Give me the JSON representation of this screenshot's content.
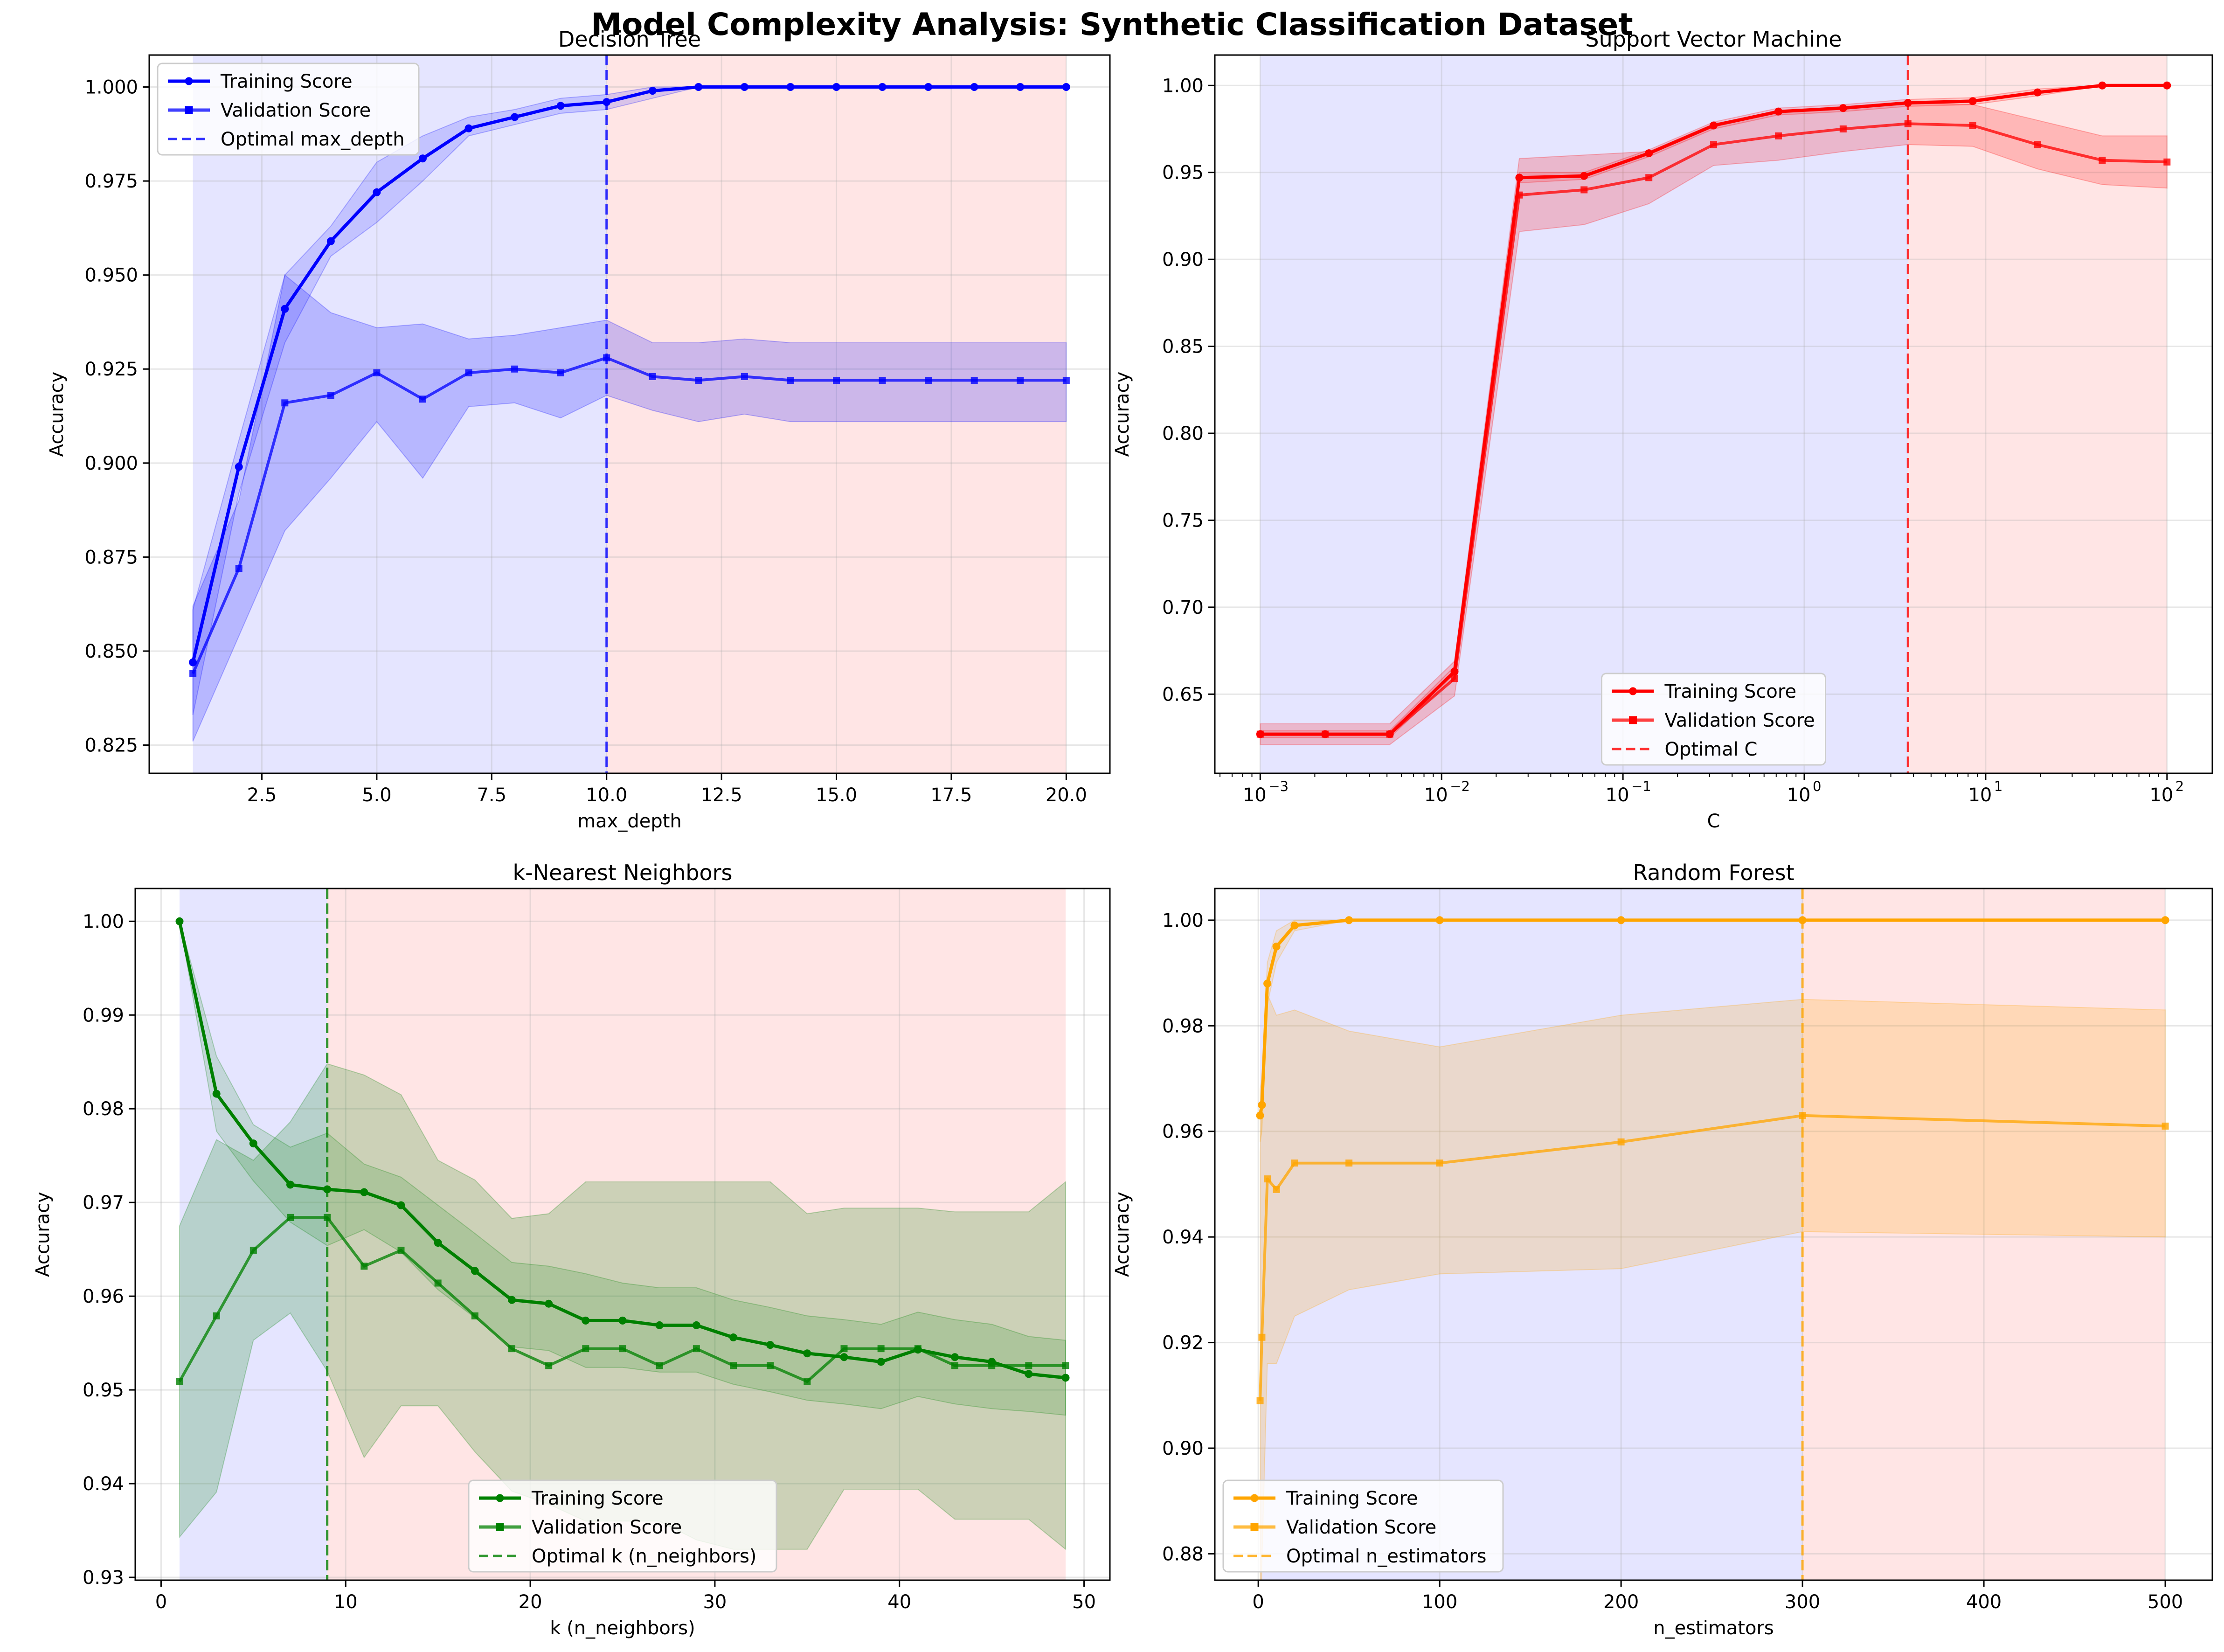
{
  "figure": {
    "title": "Model Complexity Analysis: Synthetic Classification Dataset"
  },
  "chart_data": [
    {
      "type": "line",
      "title": "Decision Tree",
      "xlabel": "max_depth",
      "ylabel": "Accuracy",
      "xscale": "linear",
      "xlim": [
        0.05,
        20.95
      ],
      "ylim": [
        0.8175,
        1.0085
      ],
      "xticks": [
        2.5,
        5.0,
        7.5,
        10.0,
        12.5,
        15.0,
        17.5,
        20.0
      ],
      "xtick_labels": [
        "2.5",
        "5.0",
        "7.5",
        "10.0",
        "12.5",
        "15.0",
        "17.5",
        "20.0"
      ],
      "yticks": [
        0.825,
        0.85,
        0.875,
        0.9,
        0.925,
        0.95,
        0.975,
        1.0
      ],
      "ytick_labels": [
        "0.825",
        "0.850",
        "0.875",
        "0.900",
        "0.925",
        "0.950",
        "0.975",
        "1.000"
      ],
      "color": "#0000ff",
      "legend": "upper-left",
      "grid": true,
      "optimal": {
        "value": 10,
        "label": "Optimal max_depth"
      },
      "region_start": 1,
      "region_end": 20,
      "x": [
        1,
        2,
        3,
        4,
        5,
        6,
        7,
        8,
        9,
        10,
        11,
        12,
        13,
        14,
        15,
        16,
        17,
        18,
        19,
        20
      ],
      "series": [
        {
          "name": "Training Score",
          "marker": "circle",
          "values": [
            0.847,
            0.899,
            0.941,
            0.959,
            0.972,
            0.981,
            0.989,
            0.992,
            0.995,
            0.996,
            0.999,
            1.0,
            1.0,
            1.0,
            1.0,
            1.0,
            1.0,
            1.0,
            1.0,
            1.0
          ],
          "lower": [
            0.833,
            0.892,
            0.932,
            0.955,
            0.964,
            0.975,
            0.987,
            0.99,
            0.993,
            0.994,
            0.997,
            1.0,
            1.0,
            1.0,
            1.0,
            1.0,
            1.0,
            1.0,
            1.0,
            1.0
          ],
          "upper": [
            0.861,
            0.906,
            0.95,
            0.963,
            0.98,
            0.987,
            0.992,
            0.994,
            0.997,
            0.998,
            1.0,
            1.0,
            1.0,
            1.0,
            1.0,
            1.0,
            1.0,
            1.0,
            1.0,
            1.0
          ]
        },
        {
          "name": "Validation Score",
          "marker": "square",
          "values": [
            0.844,
            0.872,
            0.916,
            0.918,
            0.924,
            0.917,
            0.924,
            0.925,
            0.924,
            0.928,
            0.923,
            0.922,
            0.923,
            0.922,
            0.922,
            0.922,
            0.922,
            0.922,
            0.922,
            0.922
          ],
          "lower": [
            0.826,
            0.854,
            0.882,
            0.896,
            0.911,
            0.896,
            0.915,
            0.916,
            0.912,
            0.918,
            0.914,
            0.911,
            0.913,
            0.911,
            0.911,
            0.911,
            0.911,
            0.911,
            0.911,
            0.911
          ],
          "upper": [
            0.862,
            0.89,
            0.95,
            0.94,
            0.936,
            0.937,
            0.933,
            0.934,
            0.936,
            0.938,
            0.932,
            0.932,
            0.933,
            0.932,
            0.932,
            0.932,
            0.932,
            0.932,
            0.932,
            0.932
          ]
        }
      ]
    },
    {
      "type": "line",
      "title": "Support Vector Machine",
      "xlabel": "C",
      "ylabel": "Accuracy",
      "xscale": "log",
      "xlim": [
        0.000562,
        177.8
      ],
      "ylim": [
        0.6045,
        1.0175
      ],
      "xticks": [
        0.001,
        0.01,
        0.1,
        1,
        10,
        100
      ],
      "xtick_labels": [
        "10",
        "10",
        "10",
        "10",
        "10",
        "10"
      ],
      "xtick_exponents": [
        "−3",
        "−2",
        "−1",
        "0",
        "1",
        "2"
      ],
      "yticks": [
        0.65,
        0.7,
        0.75,
        0.8,
        0.85,
        0.9,
        0.95,
        1.0
      ],
      "ytick_labels": [
        "0.65",
        "0.70",
        "0.75",
        "0.80",
        "0.85",
        "0.90",
        "0.95",
        "1.00"
      ],
      "color": "#ff0000",
      "legend": "lower-center",
      "grid": true,
      "optimal": {
        "value": 3.728,
        "label": "Optimal C"
      },
      "region_start": 0.001,
      "region_end": 100,
      "x": [
        0.001,
        0.00228,
        0.00518,
        0.01179,
        0.02683,
        0.06105,
        0.13895,
        0.31623,
        0.71969,
        1.6379,
        3.7276,
        8.4834,
        19.307,
        43.94,
        100
      ],
      "series": [
        {
          "name": "Training Score",
          "marker": "circle",
          "values": [
            0.627,
            0.627,
            0.627,
            0.663,
            0.947,
            0.948,
            0.961,
            0.977,
            0.985,
            0.987,
            0.99,
            0.991,
            0.996,
            1.0,
            1.0
          ],
          "lower": [
            0.625,
            0.625,
            0.625,
            0.66,
            0.944,
            0.946,
            0.959,
            0.975,
            0.983,
            0.985,
            0.988,
            0.989,
            0.994,
            1.0,
            1.0
          ],
          "upper": [
            0.629,
            0.629,
            0.629,
            0.666,
            0.95,
            0.95,
            0.963,
            0.979,
            0.987,
            0.989,
            0.992,
            0.993,
            0.998,
            1.0,
            1.0
          ]
        },
        {
          "name": "Validation Score",
          "marker": "square",
          "values": [
            0.627,
            0.627,
            0.627,
            0.659,
            0.937,
            0.94,
            0.947,
            0.966,
            0.971,
            0.975,
            0.978,
            0.977,
            0.966,
            0.957,
            0.956
          ],
          "lower": [
            0.621,
            0.621,
            0.621,
            0.649,
            0.916,
            0.92,
            0.932,
            0.954,
            0.957,
            0.962,
            0.966,
            0.965,
            0.952,
            0.943,
            0.941
          ],
          "upper": [
            0.633,
            0.633,
            0.633,
            0.669,
            0.958,
            0.96,
            0.962,
            0.978,
            0.985,
            0.988,
            0.99,
            0.989,
            0.98,
            0.971,
            0.971
          ]
        }
      ]
    },
    {
      "type": "line",
      "title": "k-Nearest Neighbors",
      "xlabel": "k (n_neighbors)",
      "ylabel": "Accuracy",
      "xscale": "linear",
      "xlim": [
        -1.4,
        51.4
      ],
      "ylim": [
        0.9297,
        1.0035
      ],
      "xticks": [
        0,
        10,
        20,
        30,
        40,
        50
      ],
      "xtick_labels": [
        "0",
        "10",
        "20",
        "30",
        "40",
        "50"
      ],
      "yticks": [
        0.93,
        0.94,
        0.95,
        0.96,
        0.97,
        0.98,
        0.99,
        1.0
      ],
      "ytick_labels": [
        "0.93",
        "0.94",
        "0.95",
        "0.96",
        "0.97",
        "0.98",
        "0.99",
        "1.00"
      ],
      "color": "#008000",
      "legend": "lower-center",
      "grid": true,
      "optimal": {
        "value": 9,
        "label": "Optimal k (n_neighbors)"
      },
      "region_start": 1,
      "region_end": 49,
      "x": [
        1,
        3,
        5,
        7,
        9,
        11,
        13,
        15,
        17,
        19,
        21,
        23,
        25,
        27,
        29,
        31,
        33,
        35,
        37,
        39,
        41,
        43,
        45,
        47,
        49
      ],
      "series": [
        {
          "name": "Training Score",
          "marker": "circle",
          "values": [
            1.0,
            0.9816,
            0.9763,
            0.9719,
            0.9714,
            0.9711,
            0.9697,
            0.9657,
            0.9627,
            0.9596,
            0.9592,
            0.9574,
            0.9574,
            0.9569,
            0.9569,
            0.9556,
            0.9548,
            0.9539,
            0.9535,
            0.953,
            0.9543,
            0.9535,
            0.953,
            0.9517,
            0.9513
          ],
          "lower": [
            1.0,
            0.9776,
            0.9723,
            0.9679,
            0.9654,
            0.9671,
            0.9647,
            0.9607,
            0.9577,
            0.9546,
            0.9542,
            0.9524,
            0.9524,
            0.9519,
            0.9519,
            0.9506,
            0.9498,
            0.9489,
            0.9485,
            0.948,
            0.9493,
            0.9485,
            0.948,
            0.9477,
            0.9473
          ],
          "upper": [
            1.0,
            0.9856,
            0.9783,
            0.9759,
            0.9774,
            0.9741,
            0.9727,
            0.9697,
            0.9667,
            0.9636,
            0.9632,
            0.9624,
            0.9614,
            0.9609,
            0.9609,
            0.9596,
            0.9588,
            0.9579,
            0.9575,
            0.957,
            0.9583,
            0.9575,
            0.957,
            0.9557,
            0.9553
          ]
        },
        {
          "name": "Validation Score",
          "marker": "square",
          "values": [
            0.9509,
            0.9579,
            0.9649,
            0.9684,
            0.9684,
            0.9632,
            0.9649,
            0.9614,
            0.9579,
            0.9544,
            0.9526,
            0.9544,
            0.9544,
            0.9526,
            0.9544,
            0.9526,
            0.9526,
            0.9509,
            0.9544,
            0.9544,
            0.9544,
            0.9526,
            0.9526,
            0.9526,
            0.9526
          ],
          "lower": [
            0.9343,
            0.9391,
            0.9553,
            0.9582,
            0.952,
            0.9428,
            0.9483,
            0.9483,
            0.9434,
            0.9392,
            0.9378,
            0.936,
            0.936,
            0.936,
            0.934,
            0.933,
            0.933,
            0.933,
            0.9394,
            0.9394,
            0.9394,
            0.9362,
            0.9362,
            0.9362,
            0.933
          ],
          "upper": [
            0.9675,
            0.9767,
            0.9745,
            0.9786,
            0.9848,
            0.9836,
            0.9815,
            0.9745,
            0.9724,
            0.9683,
            0.9688,
            0.9722,
            0.9722,
            0.9722,
            0.9722,
            0.9722,
            0.9722,
            0.9688,
            0.9694,
            0.9694,
            0.9694,
            0.969,
            0.969,
            0.969,
            0.9722
          ]
        }
      ]
    },
    {
      "type": "line",
      "title": "Random Forest",
      "xlabel": "n_estimators",
      "ylabel": "Accuracy",
      "xscale": "linear",
      "xlim": [
        -23.95,
        525.95
      ],
      "ylim": [
        0.875,
        1.006
      ],
      "xticks": [
        0,
        100,
        200,
        300,
        400,
        500
      ],
      "xtick_labels": [
        "0",
        "100",
        "200",
        "300",
        "400",
        "500"
      ],
      "yticks": [
        0.88,
        0.9,
        0.92,
        0.94,
        0.96,
        0.98,
        1.0
      ],
      "ytick_labels": [
        "0.88",
        "0.90",
        "0.92",
        "0.94",
        "0.96",
        "0.98",
        "1.00"
      ],
      "color": "#ffa500",
      "legend": "lower-left",
      "grid": true,
      "optimal": {
        "value": 300,
        "label": "Optimal n_estimators"
      },
      "region_start": 1,
      "region_end": 500,
      "x": [
        1,
        2,
        5,
        10,
        20,
        50,
        100,
        200,
        300,
        500
      ],
      "series": [
        {
          "name": "Training Score",
          "marker": "circle",
          "values": [
            0.963,
            0.965,
            0.988,
            0.995,
            0.999,
            1.0,
            1.0,
            1.0,
            1.0,
            1.0
          ],
          "lower": [
            0.958,
            0.96,
            0.984,
            0.992,
            0.998,
            1.0,
            1.0,
            1.0,
            1.0,
            1.0
          ],
          "upper": [
            0.968,
            0.97,
            0.992,
            0.998,
            1.0,
            1.0,
            1.0,
            1.0,
            1.0,
            1.0
          ]
        },
        {
          "name": "Validation Score",
          "marker": "square",
          "values": [
            0.909,
            0.921,
            0.951,
            0.949,
            0.954,
            0.954,
            0.954,
            0.958,
            0.963,
            0.961
          ],
          "lower": [
            0.862,
            0.878,
            0.916,
            0.916,
            0.925,
            0.93,
            0.933,
            0.934,
            0.941,
            0.94
          ],
          "upper": [
            0.956,
            0.964,
            0.986,
            0.982,
            0.983,
            0.979,
            0.976,
            0.982,
            0.985,
            0.983
          ]
        }
      ]
    }
  ]
}
